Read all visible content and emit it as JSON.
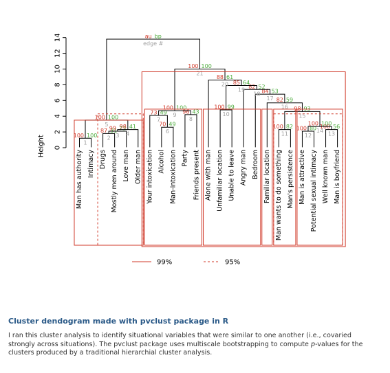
{
  "caption": {
    "title": "Cluster dendogram made with pvclust package in R",
    "body_before_p": "I ran this cluster analysis to identify situational variables that were similar to one another (i.e., covaried strongly across situations).  The pvclust package uses multiscale bootstrapping to compute ",
    "p_symbol": "p",
    "body_after_p": "-values for the clusters produced by a traditional hierarchial cluster analysis."
  },
  "colors": {
    "au": "#d03a2a",
    "bp": "#4cab3c",
    "edge": "#9e9e9e",
    "rect": "#d03a2a",
    "tree": "#000000"
  },
  "chart_data": {
    "type": "dendrogram",
    "ylabel": "Height",
    "ylim": [
      0,
      14
    ],
    "yticks": [
      0,
      2,
      4,
      6,
      8,
      10,
      12,
      14
    ],
    "header_labels": {
      "au": "au",
      "bp": "bp",
      "edge": "edge #"
    },
    "legend": [
      {
        "label": "99%",
        "style": "solid"
      },
      {
        "label": "95%",
        "style": "dashed"
      }
    ],
    "leaves": [
      "Man has authority",
      "Intimacy",
      "Drugs",
      "Mostly men around",
      "Love man",
      "Older man",
      "Your intoxication",
      "Alcohol",
      "Man-intoxication",
      "Party",
      "Friends present",
      "Alone with man",
      "Unfamiliar location",
      "Unable to leave",
      "Angry man",
      "Bedroom",
      "Familiar location",
      "Man wants to do something",
      "Man's persistence",
      "Man is attractive",
      "Potential sexual intimacy",
      "Well known man",
      "Man is boyfriend"
    ],
    "merges": [
      {
        "id": 1,
        "left": "L1",
        "right": "L2",
        "height": 1.2,
        "au": 100,
        "bp": 100
      },
      {
        "id": 2,
        "left": "L3",
        "right": "L4",
        "height": 1.8,
        "au": 87,
        "bp": 31
      },
      {
        "id": 3,
        "left": "M2",
        "right": "L5",
        "height": 2.1,
        "au": 99,
        "bp": 73
      },
      {
        "id": 4,
        "left": "M3",
        "right": "L6",
        "height": 2.3,
        "au": 98,
        "bp": 41
      },
      {
        "id": 5,
        "left": "M1",
        "right": "M4",
        "height": 3.5,
        "au": 100,
        "bp": 100
      },
      {
        "id": 6,
        "left": "L8",
        "right": "L9",
        "height": 2.6,
        "au": 70,
        "bp": 49
      },
      {
        "id": 7,
        "left": "L7",
        "right": "M6",
        "height": 4.1,
        "au": 73,
        "bp": 49
      },
      {
        "id": 8,
        "left": "L10",
        "right": "L11",
        "height": 4.2,
        "au": 96,
        "bp": 43
      },
      {
        "id": 9,
        "left": "M7",
        "right": "M8",
        "height": 4.7,
        "au": 100,
        "bp": 100
      },
      {
        "id": 10,
        "left": "L13",
        "right": "L14",
        "height": 4.8,
        "au": 100,
        "bp": 99
      },
      {
        "id": 11,
        "left": "L18",
        "right": "L19",
        "height": 2.3,
        "au": 100,
        "bp": 82
      },
      {
        "id": 12,
        "left": "L20",
        "right": "L21",
        "height": 2.1,
        "au": 100,
        "bp": 80
      },
      {
        "id": 13,
        "left": "L22",
        "right": "L23",
        "height": 2.3,
        "au": 100,
        "bp": 56
      },
      {
        "id": 14,
        "left": "M12",
        "right": "M13",
        "height": 2.7,
        "au": 100,
        "bp": 100
      },
      {
        "id": 15,
        "left": "M11",
        "right": "M14",
        "height": 4.6,
        "au": 98,
        "bp": 93
      },
      {
        "id": 16,
        "left": "L17",
        "right": "M15",
        "height": 5.7,
        "au": 82,
        "bp": 59
      },
      {
        "id": 17,
        "left": "L16",
        "right": "M16",
        "height": 6.8,
        "au": 84,
        "bp": 53
      },
      {
        "id": 18,
        "left": "L15",
        "right": "M17",
        "height": 7.4,
        "au": 82,
        "bp": 52
      },
      {
        "id": 19,
        "left": "M10",
        "right": "M18",
        "height": 7.9,
        "au": 85,
        "bp": 64
      },
      {
        "id": 20,
        "left": "L12",
        "right": "M19",
        "height": 8.6,
        "au": 88,
        "bp": 61
      },
      {
        "id": 21,
        "left": "M9",
        "right": "M20",
        "height": 10.0,
        "au": 100,
        "bp": 100
      },
      {
        "id": 22,
        "left": "M5",
        "right": "M21",
        "height": 13.8,
        "au": "au",
        "bp": "bp"
      }
    ],
    "rectangles": [
      {
        "from_leaf": 1,
        "to_leaf": 6,
        "style": "solid"
      },
      {
        "from_leaf": 7,
        "to_leaf": 23,
        "style": "solid"
      },
      {
        "from_leaf": 7,
        "to_leaf": 11,
        "style": "solid"
      },
      {
        "from_leaf": 12,
        "to_leaf": 16,
        "style": "solid"
      },
      {
        "from_leaf": 17,
        "to_leaf": 17,
        "style": "solid"
      },
      {
        "from_leaf": 18,
        "to_leaf": 19,
        "style": "solid"
      },
      {
        "from_leaf": 20,
        "to_leaf": 23,
        "style": "solid"
      },
      {
        "from_leaf": 3,
        "to_leaf": 6,
        "style": "dashed"
      },
      {
        "from_leaf": 18,
        "to_leaf": 23,
        "style": "dashed"
      }
    ]
  }
}
